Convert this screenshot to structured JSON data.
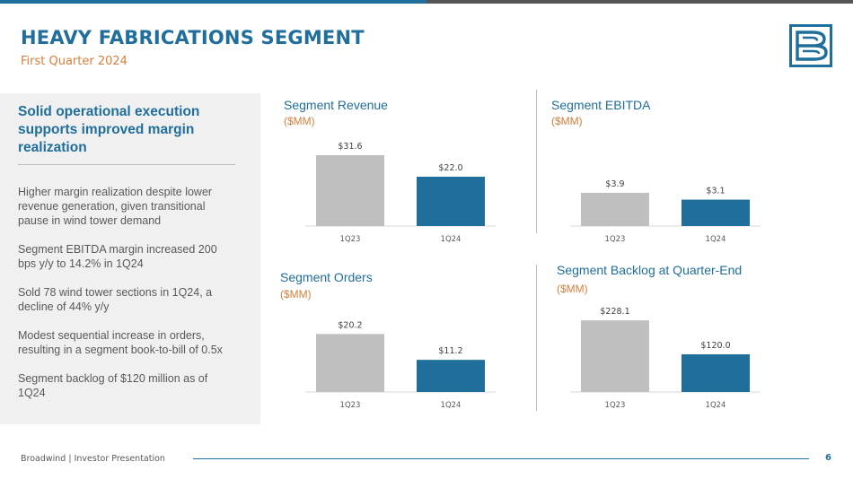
{
  "header": {
    "title": "HEAVY FABRICATIONS SEGMENT",
    "subtitle": "First Quarter 2024"
  },
  "sidebar": {
    "heading": "Solid operational execution supports improved margin realization",
    "bullets": [
      "Higher margin realization despite lower revenue generation, given transitional pause in wind tower demand",
      "Segment EBITDA margin increased 200 bps y/y to 14.2% in 1Q24",
      "Sold 78 wind tower sections in 1Q24, a decline of 44% y/y",
      "Modest sequential increase in orders, resulting in a segment book-to-bill of 0.5x",
      "Segment backlog of $120 million as of 1Q24"
    ]
  },
  "colors": {
    "accent": "#1f6e9c",
    "orange": "#d67f3c",
    "bar_prior": "#bfbfbf",
    "bar_current": "#1f6e9c"
  },
  "chart_data": [
    {
      "type": "bar",
      "title": "Segment Revenue",
      "unit": "($MM)",
      "categories": [
        "1Q23",
        "1Q24"
      ],
      "values": [
        31.6,
        22.0
      ],
      "labels": [
        "$31.6",
        "$22.0"
      ]
    },
    {
      "type": "bar",
      "title": "Segment EBITDA",
      "unit": "($MM)",
      "categories": [
        "1Q23",
        "1Q24"
      ],
      "values": [
        3.9,
        3.1
      ],
      "labels": [
        "$3.9",
        "$3.1"
      ]
    },
    {
      "type": "bar",
      "title": "Segment Orders",
      "unit": "($MM)",
      "categories": [
        "1Q23",
        "1Q24"
      ],
      "values": [
        20.2,
        11.2
      ],
      "labels": [
        "$20.2",
        "$11.2"
      ]
    },
    {
      "type": "bar",
      "title": "Segment Backlog at Quarter-End",
      "unit": "($MM)",
      "categories": [
        "1Q23",
        "1Q24"
      ],
      "values": [
        228.1,
        120.0
      ],
      "labels": [
        "$228.1",
        "$120.0"
      ]
    }
  ],
  "footer": {
    "text": "Broadwind  | Investor Presentation",
    "page": "6"
  }
}
